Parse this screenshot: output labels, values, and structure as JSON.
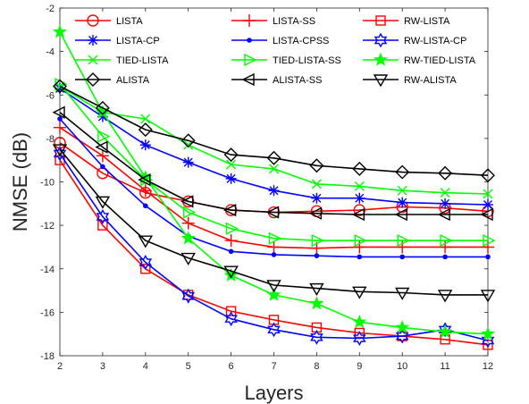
{
  "chart_data": {
    "type": "line",
    "xlabel": "Layers",
    "ylabel": "NMSE (dB)",
    "xlim": [
      2,
      12
    ],
    "ylim": [
      -18,
      -2
    ],
    "xticks": [
      2,
      3,
      4,
      5,
      6,
      7,
      8,
      9,
      10,
      11,
      12
    ],
    "yticks": [
      -18,
      -16,
      -14,
      -12,
      -10,
      -8,
      -6,
      -4,
      -2
    ],
    "grid": false,
    "legend_position": "top",
    "x": [
      2,
      3,
      4,
      5,
      6,
      7,
      8,
      9,
      10,
      11,
      12
    ],
    "series": [
      {
        "name": "LISTA",
        "color": "#ff0000",
        "marker": "circle",
        "values": [
          -8.2,
          -9.6,
          -10.5,
          -10.9,
          -11.3,
          -11.4,
          -11.35,
          -11.3,
          -11.15,
          -11.2,
          -11.35
        ]
      },
      {
        "name": "LISTA-SS",
        "color": "#ff0000",
        "marker": "plus",
        "values": [
          -7.5,
          -8.8,
          -10.4,
          -11.9,
          -12.7,
          -13.0,
          -13.05,
          -13.0,
          -13.0,
          -13.0,
          -13.0
        ]
      },
      {
        "name": "RW-LISTA",
        "color": "#ff0000",
        "marker": "square",
        "values": [
          -9.0,
          -12.0,
          -14.0,
          -15.2,
          -15.95,
          -16.35,
          -16.7,
          -16.95,
          -17.1,
          -17.25,
          -17.5
        ]
      },
      {
        "name": "LISTA-CP",
        "color": "#0000ff",
        "marker": "asterisk",
        "values": [
          -5.7,
          -7.0,
          -8.3,
          -9.1,
          -9.85,
          -10.4,
          -10.75,
          -10.75,
          -10.95,
          -11.0,
          -11.05
        ]
      },
      {
        "name": "LISTA-CPSS",
        "color": "#0000ff",
        "marker": "dot",
        "values": [
          -7.1,
          -9.3,
          -11.1,
          -12.5,
          -13.2,
          -13.35,
          -13.4,
          -13.45,
          -13.45,
          -13.45,
          -13.45
        ]
      },
      {
        "name": "RW-LISTA-CP",
        "color": "#0000ff",
        "marker": "hexagram",
        "values": [
          -8.7,
          -11.6,
          -13.7,
          -15.25,
          -16.3,
          -16.8,
          -17.15,
          -17.2,
          -17.1,
          -16.8,
          -17.3
        ]
      },
      {
        "name": "TIED-LISTA",
        "color": "#00ff00",
        "marker": "x",
        "values": [
          -5.6,
          -6.8,
          -7.1,
          -8.3,
          -9.2,
          -9.4,
          -10.1,
          -10.2,
          -10.4,
          -10.5,
          -10.55
        ]
      },
      {
        "name": "TIED-LISTA-SS",
        "color": "#00ff00",
        "marker": "triangle-right",
        "values": [
          -5.5,
          -7.9,
          -9.9,
          -11.4,
          -12.15,
          -12.6,
          -12.7,
          -12.7,
          -12.7,
          -12.7,
          -12.7
        ]
      },
      {
        "name": "RW-TIED-LISTA",
        "color": "#00ff00",
        "marker": "star",
        "values": [
          -3.1,
          -6.8,
          -9.8,
          -12.6,
          -14.3,
          -15.2,
          -15.6,
          -16.45,
          -16.7,
          -16.9,
          -17.0
        ]
      },
      {
        "name": "ALISTA",
        "color": "#000000",
        "marker": "diamond",
        "values": [
          -5.6,
          -6.6,
          -7.6,
          -8.1,
          -8.75,
          -8.9,
          -9.25,
          -9.4,
          -9.55,
          -9.6,
          -9.7
        ]
      },
      {
        "name": "ALISTA-SS",
        "color": "#000000",
        "marker": "triangle-left",
        "values": [
          -6.8,
          -8.4,
          -9.9,
          -10.9,
          -11.3,
          -11.4,
          -11.45,
          -11.5,
          -11.5,
          -11.5,
          -11.5
        ]
      },
      {
        "name": "RW-ALISTA",
        "color": "#000000",
        "marker": "triangle-down",
        "values": [
          -8.5,
          -10.9,
          -12.7,
          -13.5,
          -14.1,
          -14.75,
          -14.9,
          -15.05,
          -15.1,
          -15.2,
          -15.2
        ]
      }
    ]
  }
}
